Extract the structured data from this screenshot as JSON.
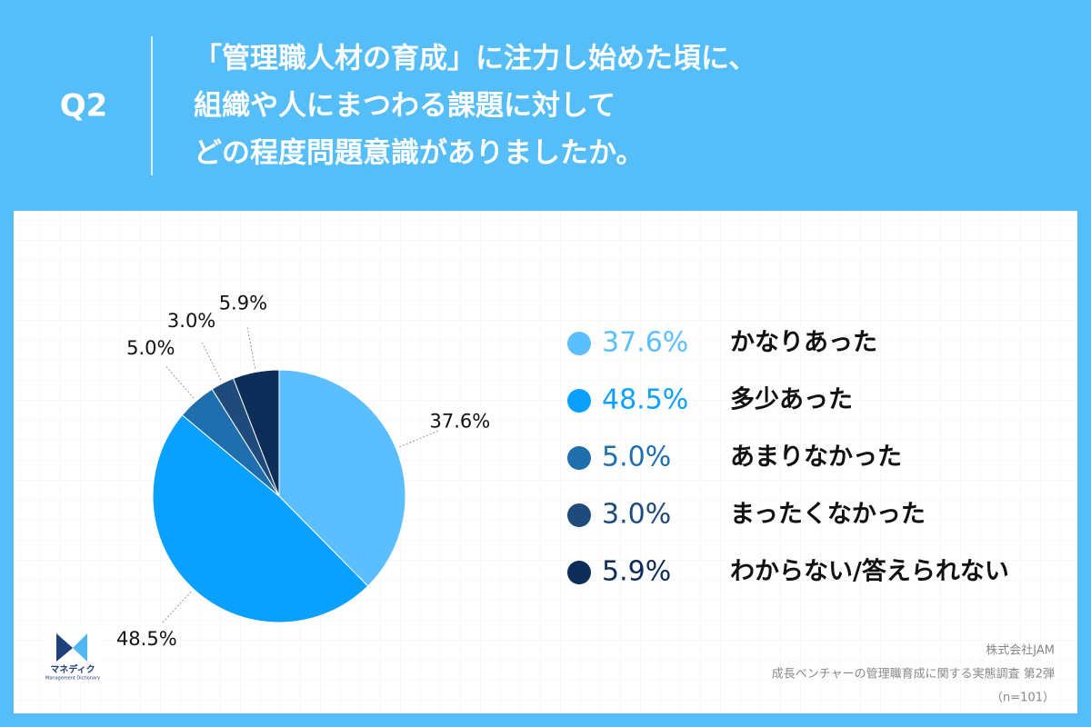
{
  "header": {
    "question": "Q2",
    "title": [
      "「管理職人材の育成」に注力し始めた頃に、",
      "組織や人にまつわる課題に対して",
      "どの程度問題意識がありましたか。"
    ]
  },
  "chart_data": {
    "type": "pie",
    "categories": [
      "かなりあった",
      "多少あった",
      "あまりなかった",
      "まったくなかった",
      "わからない/答えられない"
    ],
    "values": [
      37.6,
      48.5,
      5.0,
      3.0,
      5.9
    ],
    "value_labels": [
      "37.6%",
      "48.5%",
      "5.0%",
      "3.0%",
      "5.9%"
    ],
    "colors": [
      "#5bbfff",
      "#0aa0ff",
      "#1f6fae",
      "#1e4b7c",
      "#0c2d57"
    ]
  },
  "footer": {
    "source": [
      "株式会社JAM",
      "成長ベンチャーの管理職育成に関する実態調査 第2弾",
      "（n=101）"
    ]
  },
  "logo": {
    "name": "マネディク",
    "subtitle": "Management Dictionary"
  }
}
